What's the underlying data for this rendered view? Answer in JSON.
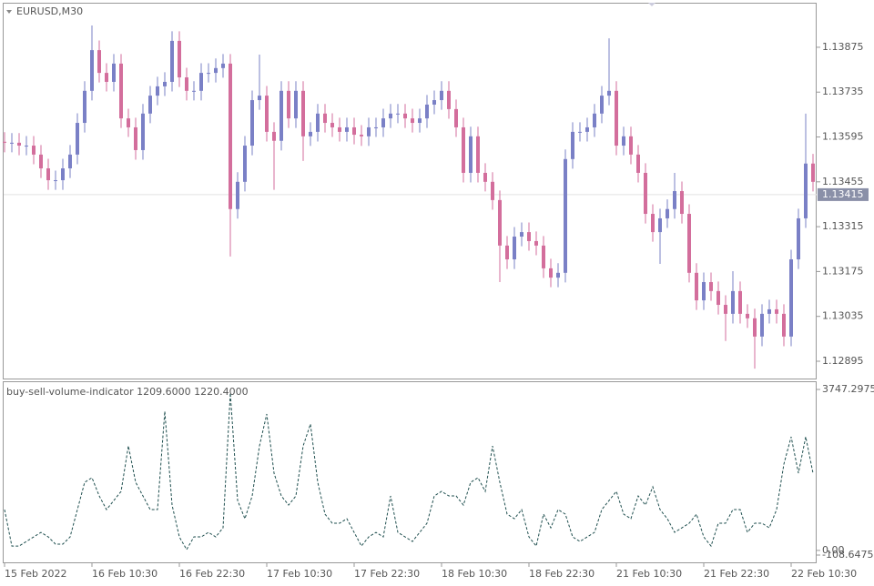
{
  "chart_data": [
    {
      "type": "candlestick",
      "title": "EURUSD,M30",
      "categories": [
        "15 Feb 2022",
        null,
        null,
        null,
        null,
        null,
        null,
        null,
        null,
        null,
        null,
        null,
        "16 Feb 10:30",
        null,
        null,
        null,
        null,
        null,
        null,
        null,
        null,
        null,
        null,
        null,
        "16 Feb 22:30",
        null,
        null,
        null,
        null,
        null,
        null,
        null,
        null,
        null,
        null,
        null,
        "17 Feb 10:30",
        null,
        null,
        null,
        null,
        null,
        null,
        null,
        null,
        null,
        null,
        null,
        "17 Feb 22:30",
        null,
        null,
        null,
        null,
        null,
        null,
        null,
        null,
        null,
        null,
        null,
        "18 Feb 10:30",
        null,
        null,
        null,
        null,
        null,
        null,
        null,
        null,
        null,
        null,
        null,
        "18 Feb 22:30",
        null,
        null,
        null,
        null,
        null,
        null,
        null,
        null,
        null,
        null,
        null,
        "21 Feb 10:30",
        null,
        null,
        null,
        null,
        null,
        null,
        null,
        null,
        null,
        null,
        null,
        "21 Feb 22:30",
        null,
        null,
        null,
        null,
        null,
        null,
        null,
        null,
        null,
        null,
        null,
        "22 Feb 10:30",
        null,
        null,
        null
      ],
      "open": [
        1.1358,
        1.13577,
        1.13577,
        1.13568,
        1.13568,
        1.1354,
        1.13497,
        1.1346,
        1.1346,
        1.13497,
        1.1354,
        1.13639,
        1.13739,
        1.13866,
        1.13795,
        1.13767,
        1.13824,
        1.13653,
        1.13625,
        1.13554,
        1.13668,
        1.13724,
        1.13753,
        1.13767,
        1.13895,
        1.13781,
        1.13739,
        1.13739,
        1.13795,
        1.13795,
        1.1381,
        1.13824,
        1.1337,
        1.13455,
        1.13568,
        1.1371,
        1.13724,
        1.13611,
        1.13583,
        1.13739,
        1.13653,
        1.13739,
        1.13597,
        1.13611,
        1.13668,
        1.13639,
        1.13625,
        1.13611,
        1.13625,
        1.13602,
        1.13597,
        1.13625,
        1.13625,
        1.13653,
        1.13668,
        1.13668,
        1.13653,
        1.13639,
        1.13653,
        1.13696,
        1.1371,
        1.13739,
        1.13682,
        1.13625,
        1.13483,
        1.13597,
        1.13483,
        1.13455,
        1.13398,
        1.13256,
        1.13213,
        1.13284,
        1.13298,
        1.1327,
        1.13256,
        1.13185,
        1.13156,
        1.13171,
        1.13526,
        1.13611,
        1.13611,
        1.13625,
        1.13668,
        1.13724,
        1.13739,
        1.13568,
        1.13597,
        1.1354,
        1.13483,
        1.13355,
        1.13298,
        1.13341,
        1.1337,
        1.13426,
        1.13355,
        1.13171,
        1.13085,
        1.13142,
        1.13114,
        1.13071,
        1.13043,
        1.13114,
        1.13043,
        1.13029,
        1.12972,
        1.13043,
        1.13057,
        1.13043,
        1.12972,
        1.13213,
        1.13341,
        1.13512
      ],
      "high": [
        1.1361,
        1.13607,
        1.13607,
        1.13598,
        1.13598,
        1.1357,
        1.13527,
        1.1349,
        1.13527,
        1.1357,
        1.13669,
        1.13769,
        1.13943,
        1.13896,
        1.13825,
        1.13854,
        1.13854,
        1.13683,
        1.13655,
        1.13698,
        1.13754,
        1.13783,
        1.13797,
        1.13925,
        1.13925,
        1.13811,
        1.13769,
        1.13825,
        1.13825,
        1.1384,
        1.13854,
        1.13854,
        1.13485,
        1.13598,
        1.1374,
        1.13852,
        1.13754,
        1.13641,
        1.13769,
        1.13769,
        1.13769,
        1.13769,
        1.13641,
        1.13698,
        1.13698,
        1.13669,
        1.13655,
        1.13655,
        1.13655,
        1.13632,
        1.13655,
        1.13655,
        1.13683,
        1.13698,
        1.13698,
        1.13698,
        1.13683,
        1.13683,
        1.13726,
        1.1374,
        1.13769,
        1.13769,
        1.13712,
        1.13655,
        1.13627,
        1.13627,
        1.13513,
        1.13485,
        1.13428,
        1.13286,
        1.13314,
        1.13328,
        1.13328,
        1.133,
        1.13286,
        1.13215,
        1.13201,
        1.13556,
        1.13641,
        1.13641,
        1.13655,
        1.13698,
        1.13754,
        1.13903,
        1.13769,
        1.13627,
        1.13627,
        1.1357,
        1.13513,
        1.13385,
        1.13371,
        1.134,
        1.13483,
        1.13456,
        1.13385,
        1.13201,
        1.13172,
        1.13172,
        1.13144,
        1.13101,
        1.13176,
        1.13144,
        1.13073,
        1.13059,
        1.13073,
        1.13087,
        1.13087,
        1.13073,
        1.13243,
        1.13371,
        1.13668,
        1.13542
      ],
      "low": [
        1.13547,
        1.13547,
        1.13538,
        1.13538,
        1.1351,
        1.13467,
        1.1343,
        1.1343,
        1.1343,
        1.13467,
        1.1351,
        1.13609,
        1.13709,
        1.13765,
        1.13737,
        1.13737,
        1.13623,
        1.13595,
        1.13524,
        1.13524,
        1.13638,
        1.13694,
        1.13723,
        1.13737,
        1.13751,
        1.13709,
        1.13709,
        1.13709,
        1.13765,
        1.13765,
        1.1378,
        1.13222,
        1.1334,
        1.13425,
        1.13538,
        1.1368,
        1.13581,
        1.1343,
        1.13553,
        1.13623,
        1.13623,
        1.1352,
        1.13567,
        1.13581,
        1.13609,
        1.13595,
        1.13581,
        1.13581,
        1.13572,
        1.13567,
        1.13567,
        1.13595,
        1.13595,
        1.13623,
        1.13638,
        1.13623,
        1.13609,
        1.13609,
        1.13623,
        1.13666,
        1.1368,
        1.13652,
        1.13595,
        1.13453,
        1.13453,
        1.13453,
        1.13425,
        1.13368,
        1.13142,
        1.13183,
        1.13183,
        1.13254,
        1.1324,
        1.13226,
        1.13155,
        1.13126,
        1.13126,
        1.13141,
        1.13496,
        1.13581,
        1.13581,
        1.13595,
        1.13638,
        1.13694,
        1.13538,
        1.13538,
        1.1351,
        1.13453,
        1.13325,
        1.13268,
        1.13199,
        1.13311,
        1.1334,
        1.13325,
        1.13141,
        1.13055,
        1.13055,
        1.13084,
        1.13041,
        1.12958,
        1.13013,
        1.13013,
        1.12999,
        1.12872,
        1.12942,
        1.13013,
        1.13013,
        1.12942,
        1.12942,
        1.13183,
        1.13311,
        1.13425
      ],
      "close": [
        1.13577,
        1.13577,
        1.13568,
        1.13568,
        1.1354,
        1.13497,
        1.1346,
        1.1346,
        1.13497,
        1.1354,
        1.13639,
        1.13739,
        1.13866,
        1.13795,
        1.13767,
        1.13824,
        1.13653,
        1.13625,
        1.13554,
        1.13668,
        1.13724,
        1.13753,
        1.13767,
        1.13895,
        1.13781,
        1.13739,
        1.13739,
        1.13795,
        1.13795,
        1.1381,
        1.13824,
        1.1337,
        1.13455,
        1.13568,
        1.1371,
        1.13724,
        1.13611,
        1.13583,
        1.13739,
        1.13653,
        1.13739,
        1.13597,
        1.13611,
        1.13668,
        1.13639,
        1.13625,
        1.13611,
        1.13625,
        1.13602,
        1.13597,
        1.13625,
        1.13625,
        1.13653,
        1.13668,
        1.13668,
        1.13653,
        1.13639,
        1.13653,
        1.13696,
        1.1371,
        1.13739,
        1.13682,
        1.13625,
        1.13483,
        1.13597,
        1.13483,
        1.13455,
        1.13398,
        1.13256,
        1.13213,
        1.13284,
        1.13298,
        1.1327,
        1.13256,
        1.13185,
        1.13156,
        1.13171,
        1.13526,
        1.13611,
        1.13611,
        1.13625,
        1.13668,
        1.13724,
        1.13739,
        1.13568,
        1.13597,
        1.1354,
        1.13483,
        1.13355,
        1.13298,
        1.13341,
        1.1337,
        1.13426,
        1.13355,
        1.13171,
        1.13085,
        1.13142,
        1.13114,
        1.13071,
        1.13043,
        1.13114,
        1.13043,
        1.13029,
        1.12972,
        1.13043,
        1.13057,
        1.13043,
        1.12972,
        1.13213,
        1.13341,
        1.13512,
        1.13455
      ],
      "up_color": "#7a80c6",
      "down_color": "#d36e9c",
      "ylim": [
        1.12841,
        1.14014
      ],
      "yticks": [
        1.13875,
        1.13735,
        1.13595,
        1.13455,
        1.13315,
        1.13175,
        1.13035,
        1.12895
      ],
      "current_price": 1.13415
    },
    {
      "type": "line",
      "title": "buy-sell-volume-indicator 1209.6000 1220.4000",
      "values": [
        950,
        102,
        102,
        208,
        314,
        420,
        314,
        145,
        145,
        314,
        950,
        1586,
        1692,
        1268,
        950,
        1162,
        1374,
        2433,
        1586,
        1268,
        950,
        950,
        3239,
        1056,
        314,
        20,
        314,
        314,
        420,
        314,
        526,
        3662,
        1162,
        738,
        1268,
        2433,
        3175,
        1798,
        1268,
        1056,
        1268,
        2433,
        2942,
        1586,
        844,
        632,
        632,
        738,
        420,
        102,
        314,
        420,
        314,
        1268,
        420,
        314,
        208,
        420,
        632,
        1268,
        1374,
        1268,
        1268,
        1056,
        1586,
        1692,
        1374,
        2433,
        1586,
        844,
        738,
        950,
        314,
        102,
        844,
        526,
        950,
        844,
        314,
        208,
        314,
        420,
        950,
        1162,
        1374,
        844,
        738,
        1268,
        1056,
        1480,
        950,
        738,
        420,
        526,
        632,
        844,
        314,
        102,
        632,
        632,
        950,
        950,
        420,
        632,
        632,
        526,
        950,
        2009,
        2645,
        1798,
        2645,
        1798
      ],
      "color": "#1f4f4f",
      "ylim": [
        -278,
        3917
      ],
      "yticks": [
        -108.6475,
        {
          "value": 0,
          "label": "0.00"
        },
        3747.2975
      ]
    }
  ]
}
